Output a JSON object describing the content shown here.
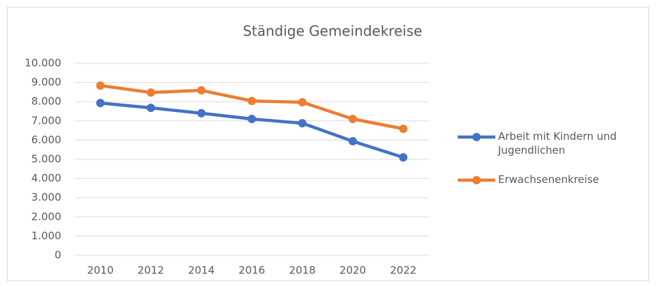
{
  "chart_data": {
    "type": "line",
    "title": "Ständige Gemeindekreise",
    "categories": [
      "2010",
      "2012",
      "2014",
      "2016",
      "2018",
      "2020",
      "2022"
    ],
    "series": [
      {
        "name": "Arbeit mit Kindern und Jugendlichen",
        "color": "#4472c4",
        "values": [
          7930,
          7680,
          7400,
          7100,
          6880,
          5940,
          5100
        ]
      },
      {
        "name": "Erwachsenenkreise",
        "color": "#ed7d31",
        "values": [
          8840,
          8480,
          8590,
          8040,
          7970,
          7100,
          6590
        ]
      }
    ],
    "ylim": [
      0,
      10000
    ],
    "yticks": [
      0,
      {
        "value": 1000,
        "label": "1.000"
      },
      {
        "value": 2000,
        "label": "2.000"
      },
      {
        "value": 3000,
        "label": "3.000"
      },
      {
        "value": 4000,
        "label": "4.000"
      },
      {
        "value": 5000,
        "label": "5.000"
      },
      {
        "value": 6000,
        "label": "6.000"
      },
      {
        "value": 7000,
        "label": "7.000"
      },
      {
        "value": 8000,
        "label": "8.000"
      },
      {
        "value": 9000,
        "label": "9.000"
      },
      {
        "value": 10000,
        "label": "10.000"
      }
    ],
    "grid": true,
    "legend": "right"
  }
}
